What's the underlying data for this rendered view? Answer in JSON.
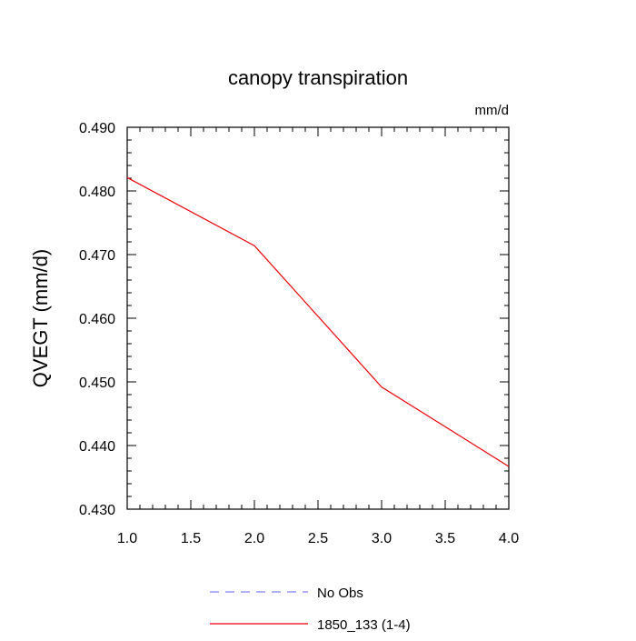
{
  "chart_data": {
    "type": "line",
    "title": "canopy transpiration",
    "units_label": "mm/d",
    "ylabel": "QVEGT  (mm/d)",
    "xlabel": "",
    "xlim": [
      1.0,
      4.0
    ],
    "ylim": [
      0.43,
      0.49
    ],
    "x_ticks": [
      "1.0",
      "1.5",
      "2.0",
      "2.5",
      "3.0",
      "3.5",
      "4.0"
    ],
    "y_ticks": [
      "0.430",
      "0.440",
      "0.450",
      "0.460",
      "0.470",
      "0.480",
      "0.490"
    ],
    "series": [
      {
        "name": "1850_133 (1-4)",
        "color": "#e8000b",
        "style": "solid",
        "x": [
          1,
          2,
          3,
          4
        ],
        "y": [
          0.4821,
          0.4714,
          0.4492,
          0.4367
        ]
      }
    ],
    "legend": [
      {
        "label": "No Obs",
        "color": "#8080ff",
        "style": "dashed"
      },
      {
        "label": "1850_133 (1-4)",
        "color": "#e8000b",
        "style": "solid"
      }
    ],
    "legend_position": "bottom-center",
    "grid": false
  }
}
